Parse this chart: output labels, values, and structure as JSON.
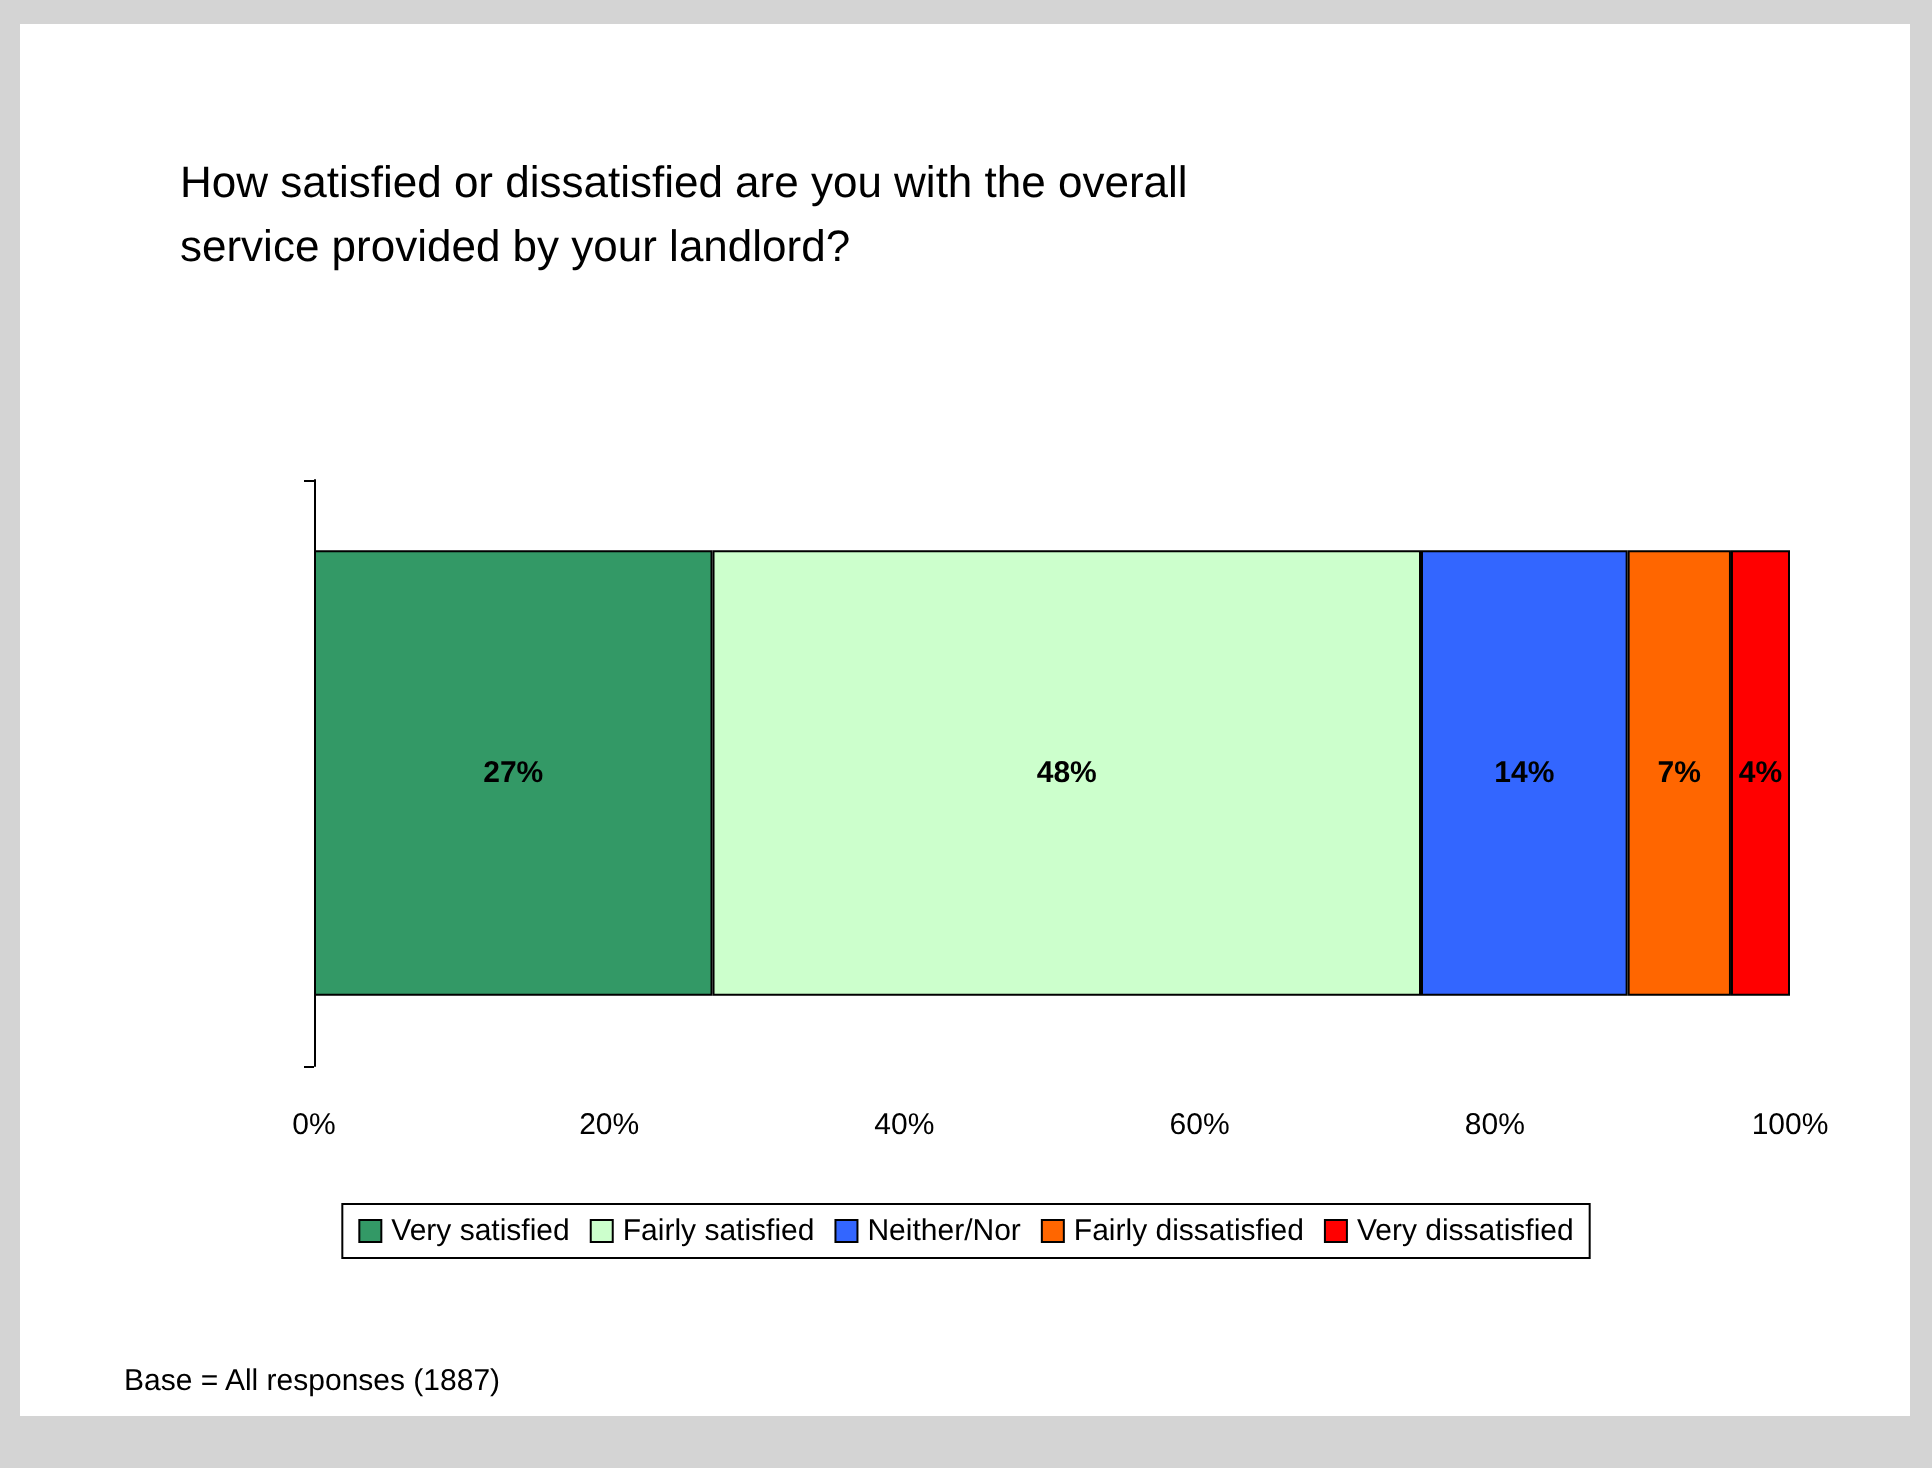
{
  "chart_data": {
    "type": "bar",
    "orientation": "horizontal",
    "stacked": true,
    "title": "How satisfied or dissatisfied are you with the overall\nservice provided by your landlord?",
    "categories": [
      null
    ],
    "series": [
      {
        "name": "Very satisfied",
        "color": "#339966",
        "values": [
          27
        ],
        "value_labels": [
          "27%"
        ]
      },
      {
        "name": "Fairly satisfied",
        "color": "#ccffcc",
        "values": [
          48
        ],
        "value_labels": [
          "48%"
        ]
      },
      {
        "name": "Neither/Nor",
        "color": "#3366ff",
        "values": [
          14
        ],
        "value_labels": [
          "14%"
        ]
      },
      {
        "name": "Fairly dissatisfied",
        "color": "#ff6600",
        "values": [
          7
        ],
        "value_labels": [
          "7%"
        ]
      },
      {
        "name": "Very dissatisfied",
        "color": "#ff0000",
        "values": [
          4
        ],
        "value_labels": [
          "4%"
        ]
      }
    ],
    "xlim": [
      0,
      100
    ],
    "xticks": [
      {
        "value": 0,
        "label": "0%"
      },
      {
        "value": 20,
        "label": "20%"
      },
      {
        "value": 40,
        "label": "40%"
      },
      {
        "value": 60,
        "label": "60%"
      },
      {
        "value": 80,
        "label": "80%"
      },
      {
        "value": 100,
        "label": "100%"
      }
    ],
    "grid": false,
    "legend": "bottom",
    "annotations": [
      "Base = All responses (1887)"
    ]
  }
}
